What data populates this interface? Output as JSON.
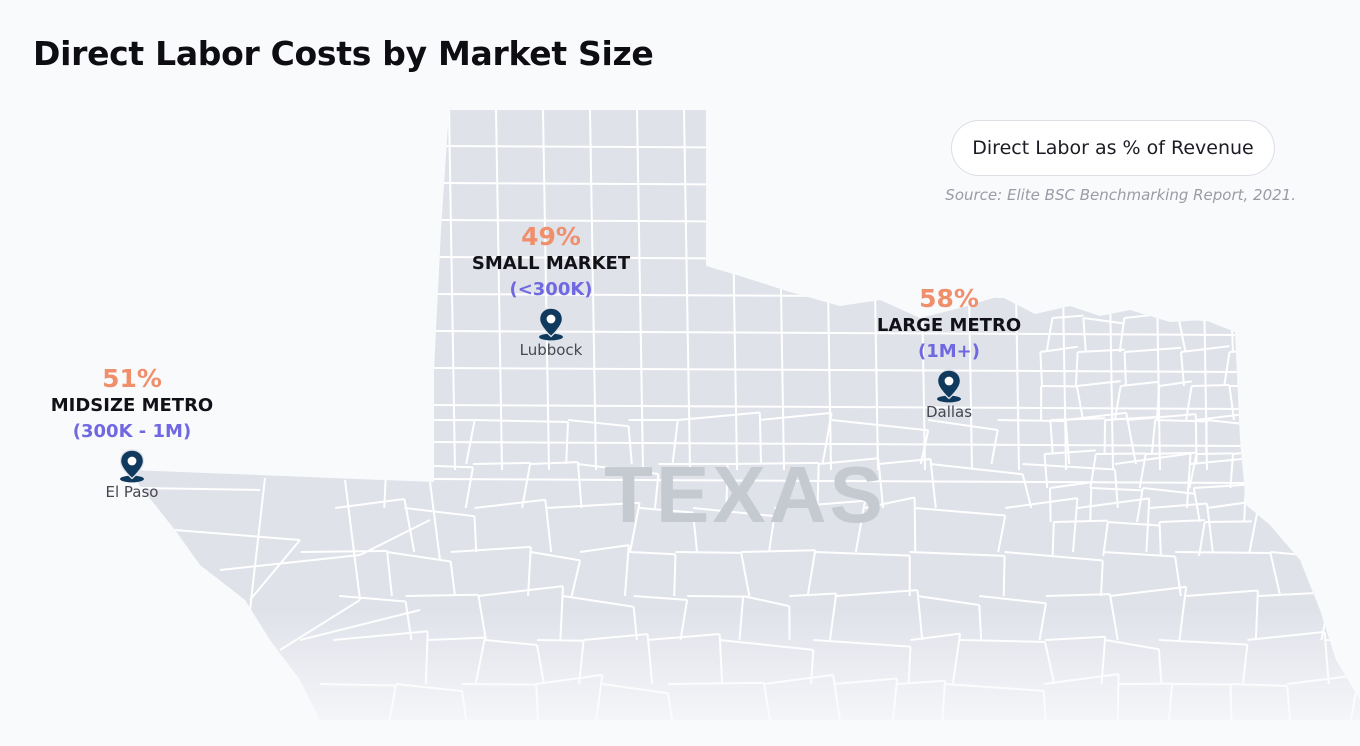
{
  "title": "Direct Labor Costs by Market Size",
  "legend": {
    "label": "Direct Labor as % of Revenue"
  },
  "source": "Source: Elite BSC Benchmarking Report, 2021.",
  "map_label": "TEXAS",
  "colors": {
    "land": "#e0e2ea",
    "county_border": "#ffffff",
    "percent": "#ef8f6c",
    "range": "#7068e0",
    "pin": "#0f3a5e",
    "watermark": "#c5c9d0"
  },
  "markers": [
    {
      "id": "midsize",
      "percent": "51%",
      "label": "MIDSIZE METRO",
      "range": "(300K - 1M)",
      "city": "El Paso",
      "icon": "map-pin-icon"
    },
    {
      "id": "small",
      "percent": "49%",
      "label": "SMALL MARKET",
      "range": "(<300K)",
      "city": "Lubbock",
      "icon": "map-pin-icon"
    },
    {
      "id": "large",
      "percent": "58%",
      "label": "LARGE METRO",
      "range": "(1M+)",
      "city": "Dallas",
      "icon": "map-pin-icon"
    }
  ]
}
